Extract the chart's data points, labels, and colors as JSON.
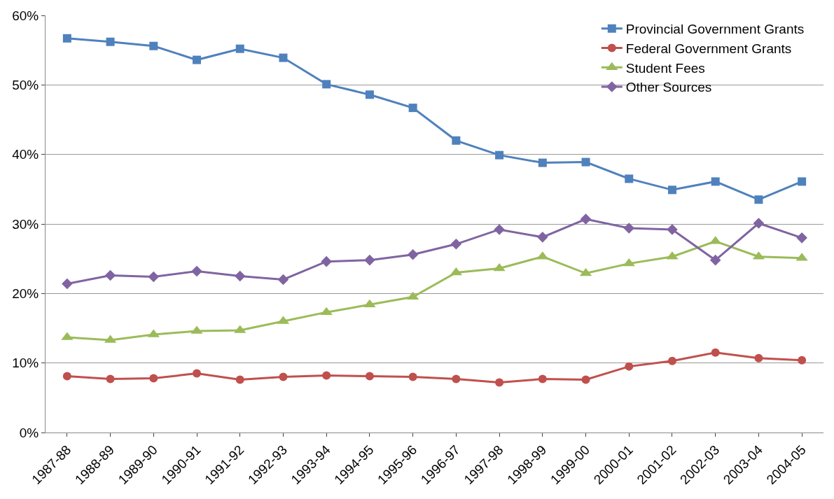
{
  "chart_data": {
    "type": "line",
    "categories": [
      "1987-88",
      "1988-89",
      "1989-90",
      "1990-91",
      "1991-92",
      "1992-93",
      "1993-94",
      "1994-95",
      "1995-96",
      "1996-97",
      "1997-98",
      "1998-99",
      "1999-00",
      "2000-01",
      "2001-02",
      "2002-03",
      "2003-04",
      "2004-05"
    ],
    "series": [
      {
        "name": "Provincial Government Grants",
        "color": "#4f81bd",
        "marker": "square",
        "values": [
          56.7,
          56.2,
          55.6,
          53.6,
          55.2,
          53.9,
          50.1,
          48.6,
          46.7,
          42.0,
          39.9,
          38.8,
          38.9,
          36.5,
          34.9,
          36.1,
          33.5,
          36.1
        ]
      },
      {
        "name": "Federal Government Grants",
        "color": "#c0504d",
        "marker": "circle",
        "values": [
          8.1,
          7.7,
          7.8,
          8.5,
          7.6,
          8.0,
          8.2,
          8.1,
          8.0,
          7.7,
          7.2,
          7.7,
          7.6,
          9.5,
          10.3,
          11.5,
          10.7,
          10.4
        ]
      },
      {
        "name": "Student Fees",
        "color": "#9bbb59",
        "marker": "triangle",
        "values": [
          13.7,
          13.3,
          14.1,
          14.6,
          14.7,
          16.0,
          17.3,
          18.4,
          19.5,
          23.0,
          23.6,
          25.3,
          22.9,
          24.3,
          25.3,
          27.5,
          25.3,
          25.1
        ]
      },
      {
        "name": "Other Sources",
        "color": "#8064a2",
        "marker": "diamond",
        "values": [
          21.4,
          22.6,
          22.4,
          23.2,
          22.5,
          22.0,
          24.6,
          24.8,
          25.6,
          27.1,
          29.2,
          28.1,
          30.7,
          29.4,
          29.2,
          24.8,
          30.1,
          28.0
        ]
      }
    ],
    "ylim": [
      0,
      60
    ],
    "yticks": [
      {
        "value": 0,
        "label": "0%"
      },
      {
        "value": 10,
        "label": "10%"
      },
      {
        "value": 20,
        "label": "20%"
      },
      {
        "value": 30,
        "label": "30%"
      },
      {
        "value": 40,
        "label": "40%"
      },
      {
        "value": 50,
        "label": "50%"
      },
      {
        "value": 60,
        "label": "60%"
      }
    ],
    "grid": "y",
    "legend": "top right",
    "line_style": "solid"
  }
}
